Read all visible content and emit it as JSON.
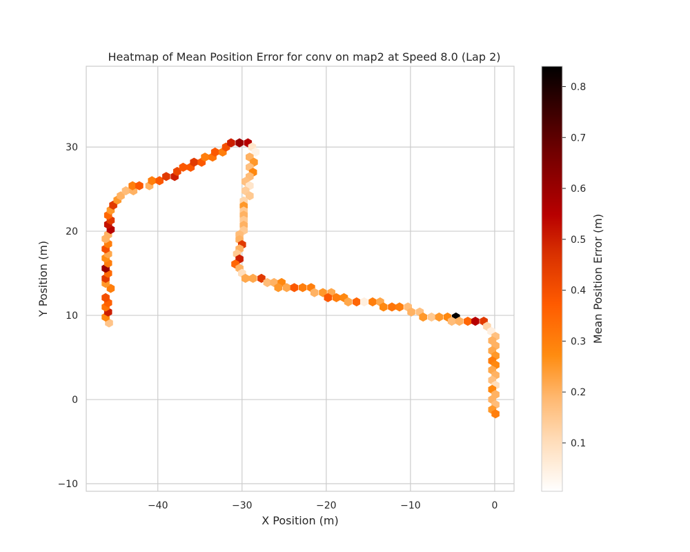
{
  "chart_data": {
    "type": "heatmap",
    "subtype": "hexbin",
    "title": "Heatmap of Mean Position Error for conv on map2 at Speed 8.0 (Lap 2)",
    "xlabel": "X Position (m)",
    "ylabel": "Y Position (m)",
    "xlim": [
      -48.5,
      2.3
    ],
    "ylim": [
      -10.9,
      39.6
    ],
    "x_ticks": [
      -40,
      -30,
      -20,
      -10,
      0
    ],
    "x_tick_labels": [
      "−40",
      "−30",
      "−20",
      "−10",
      "0"
    ],
    "y_ticks": [
      -10,
      0,
      10,
      20,
      30
    ],
    "y_tick_labels": [
      "−10",
      "0",
      "10",
      "20",
      "30"
    ],
    "grid": true,
    "colormap": "gist_heat_r",
    "colorbar": {
      "label": "Mean Position Error (m)",
      "vmin": 0.005,
      "vmax": 0.84,
      "ticks": [
        0.1,
        0.2,
        0.3,
        0.4,
        0.5,
        0.6,
        0.7,
        0.8
      ],
      "tick_labels": [
        "0.1",
        "0.2",
        "0.3",
        "0.4",
        "0.5",
        "0.6",
        "0.7",
        "0.8"
      ]
    },
    "points": [
      [
        -45.8,
        9.1,
        0.16
      ],
      [
        -46.2,
        9.8,
        0.28
      ],
      [
        -45.9,
        10.4,
        0.5
      ],
      [
        -46.2,
        11.0,
        0.32
      ],
      [
        -45.9,
        11.5,
        0.36
      ],
      [
        -46.2,
        12.1,
        0.4
      ],
      [
        -45.6,
        13.2,
        0.3
      ],
      [
        -46.2,
        13.8,
        0.25
      ],
      [
        -46.2,
        14.4,
        0.45
      ],
      [
        -45.9,
        15.0,
        0.34
      ],
      [
        -46.2,
        15.6,
        0.6
      ],
      [
        -45.9,
        16.2,
        0.3
      ],
      [
        -46.2,
        16.8,
        0.27
      ],
      [
        -45.9,
        17.3,
        0.22
      ],
      [
        -46.2,
        17.9,
        0.4
      ],
      [
        -45.9,
        18.5,
        0.3
      ],
      [
        -46.2,
        19.1,
        0.2
      ],
      [
        -45.9,
        19.6,
        0.2
      ],
      [
        -45.6,
        20.2,
        0.55
      ],
      [
        -45.9,
        20.8,
        0.52
      ],
      [
        -45.6,
        21.3,
        0.45
      ],
      [
        -45.9,
        21.9,
        0.35
      ],
      [
        -45.6,
        22.5,
        0.25
      ],
      [
        -45.3,
        23.1,
        0.45
      ],
      [
        -44.8,
        23.7,
        0.25
      ],
      [
        -44.4,
        24.2,
        0.2
      ],
      [
        -43.8,
        24.8,
        0.18
      ],
      [
        -42.9,
        24.8,
        0.2
      ],
      [
        -43.0,
        25.4,
        0.3
      ],
      [
        -42.2,
        25.4,
        0.38
      ],
      [
        -41.0,
        25.4,
        0.2
      ],
      [
        -40.7,
        26.0,
        0.3
      ],
      [
        -39.8,
        26.0,
        0.38
      ],
      [
        -39.0,
        26.5,
        0.45
      ],
      [
        -38.0,
        26.5,
        0.5
      ],
      [
        -37.7,
        27.1,
        0.42
      ],
      [
        -37.0,
        27.6,
        0.38
      ],
      [
        -36.1,
        27.6,
        0.38
      ],
      [
        -35.7,
        28.2,
        0.45
      ],
      [
        -34.8,
        28.2,
        0.38
      ],
      [
        -34.4,
        28.8,
        0.3
      ],
      [
        -33.5,
        28.8,
        0.32
      ],
      [
        -33.2,
        29.4,
        0.38
      ],
      [
        -32.3,
        29.4,
        0.3
      ],
      [
        -31.9,
        30.0,
        0.4
      ],
      [
        -31.3,
        30.5,
        0.5
      ],
      [
        -30.3,
        30.5,
        0.6
      ],
      [
        -29.3,
        30.5,
        0.55
      ],
      [
        -28.8,
        30.0,
        0.08
      ],
      [
        -28.4,
        29.4,
        0.04
      ],
      [
        -29.1,
        28.8,
        0.2
      ],
      [
        -28.6,
        28.2,
        0.25
      ],
      [
        -29.1,
        27.6,
        0.17
      ],
      [
        -28.7,
        27.0,
        0.28
      ],
      [
        -29.1,
        26.5,
        0.18
      ],
      [
        -29.6,
        25.9,
        0.17
      ],
      [
        -29.1,
        25.4,
        0.08
      ],
      [
        -29.6,
        24.8,
        0.14
      ],
      [
        -29.1,
        24.2,
        0.15
      ],
      [
        -29.8,
        23.6,
        0.12
      ],
      [
        -29.8,
        23.0,
        0.25
      ],
      [
        -29.8,
        22.4,
        0.15
      ],
      [
        -29.8,
        21.9,
        0.2
      ],
      [
        -29.8,
        21.3,
        0.15
      ],
      [
        -29.8,
        20.7,
        0.2
      ],
      [
        -29.8,
        20.1,
        0.15
      ],
      [
        -30.3,
        19.6,
        0.18
      ],
      [
        -30.3,
        19.0,
        0.2
      ],
      [
        -30.0,
        18.4,
        0.45
      ],
      [
        -30.3,
        17.9,
        0.2
      ],
      [
        -30.6,
        17.3,
        0.15
      ],
      [
        -30.3,
        16.7,
        0.5
      ],
      [
        -30.8,
        16.1,
        0.35
      ],
      [
        -30.3,
        15.6,
        0.2
      ],
      [
        -30.0,
        15.0,
        0.1
      ],
      [
        -29.6,
        14.4,
        0.22
      ],
      [
        -28.7,
        14.4,
        0.22
      ],
      [
        -27.7,
        14.4,
        0.45
      ],
      [
        -27.0,
        13.9,
        0.18
      ],
      [
        -26.2,
        13.9,
        0.2
      ],
      [
        -25.3,
        13.9,
        0.28
      ],
      [
        -25.7,
        13.3,
        0.25
      ],
      [
        -24.7,
        13.3,
        0.22
      ],
      [
        -23.8,
        13.3,
        0.38
      ],
      [
        -22.8,
        13.3,
        0.3
      ],
      [
        -21.8,
        13.3,
        0.3
      ],
      [
        -21.4,
        12.7,
        0.2
      ],
      [
        -20.4,
        12.7,
        0.25
      ],
      [
        -19.4,
        12.7,
        0.22
      ],
      [
        -19.8,
        12.1,
        0.38
      ],
      [
        -18.8,
        12.1,
        0.3
      ],
      [
        -17.9,
        12.1,
        0.28
      ],
      [
        -17.4,
        11.6,
        0.22
      ],
      [
        -16.4,
        11.6,
        0.35
      ],
      [
        -15.5,
        11.6,
        0.05
      ],
      [
        -14.5,
        11.6,
        0.3
      ],
      [
        -13.6,
        11.6,
        0.22
      ],
      [
        -13.2,
        11.0,
        0.28
      ],
      [
        -12.2,
        11.0,
        0.32
      ],
      [
        -11.3,
        11.0,
        0.3
      ],
      [
        -10.3,
        11.0,
        0.18
      ],
      [
        -9.9,
        10.4,
        0.2
      ],
      [
        -8.9,
        10.4,
        0.17
      ],
      [
        -8.5,
        9.8,
        0.25
      ],
      [
        -7.5,
        9.8,
        0.15
      ],
      [
        -6.6,
        9.8,
        0.25
      ],
      [
        -5.6,
        9.8,
        0.28
      ],
      [
        -4.6,
        9.8,
        0.84
      ],
      [
        -5.1,
        9.3,
        0.18
      ],
      [
        -4.2,
        9.3,
        0.2
      ],
      [
        -3.2,
        9.3,
        0.35
      ],
      [
        -2.3,
        9.3,
        0.55
      ],
      [
        -1.3,
        9.3,
        0.45
      ],
      [
        -0.9,
        8.7,
        0.12
      ],
      [
        -0.4,
        8.1,
        0.05
      ],
      [
        0.1,
        7.5,
        0.17
      ],
      [
        -0.3,
        7.0,
        0.2
      ],
      [
        0.1,
        6.4,
        0.2
      ],
      [
        -0.3,
        5.8,
        0.22
      ],
      [
        0.1,
        5.2,
        0.25
      ],
      [
        -0.3,
        4.6,
        0.3
      ],
      [
        0.1,
        4.1,
        0.28
      ],
      [
        -0.3,
        3.5,
        0.22
      ],
      [
        0.1,
        2.9,
        0.2
      ],
      [
        -0.3,
        2.3,
        0.17
      ],
      [
        0.1,
        1.7,
        0.1
      ],
      [
        -0.3,
        1.2,
        0.28
      ],
      [
        0.1,
        0.6,
        0.2
      ],
      [
        -0.3,
        0.0,
        0.2
      ],
      [
        0.1,
        -0.6,
        0.18
      ],
      [
        -0.3,
        -1.2,
        0.25
      ],
      [
        0.1,
        -1.7,
        0.3
      ]
    ]
  }
}
